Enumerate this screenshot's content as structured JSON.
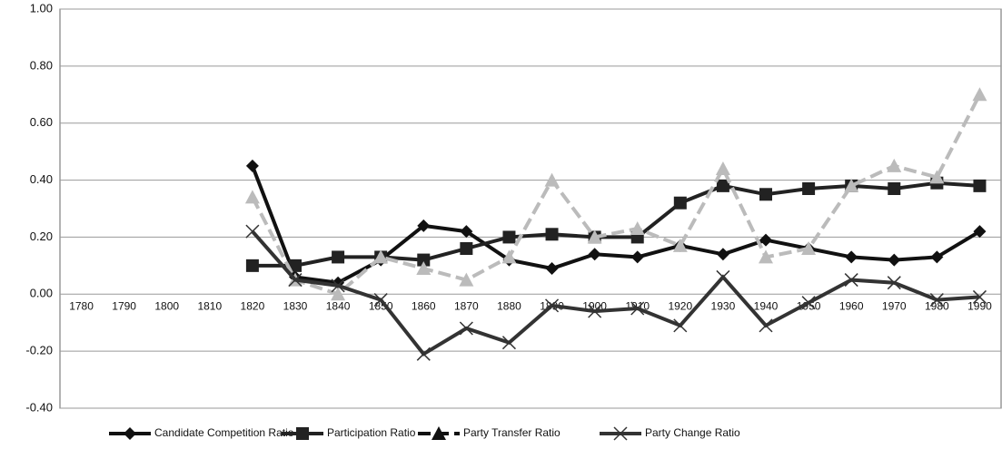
{
  "chart_data": {
    "type": "line",
    "categories": [
      "1780",
      "1790",
      "1800",
      "1810",
      "1820",
      "1830",
      "1840",
      "1850",
      "1860",
      "1870",
      "1880",
      "1890",
      "1900",
      "1910",
      "1920",
      "1930",
      "1940",
      "1950",
      "1960",
      "1970",
      "1980",
      "1990"
    ],
    "series": [
      {
        "name": "Candidate Competition Ratio",
        "color": "#111111",
        "marker": "diamond",
        "dash": false,
        "values": [
          null,
          null,
          null,
          null,
          0.45,
          0.06,
          0.04,
          0.12,
          0.24,
          0.22,
          0.12,
          0.09,
          0.14,
          0.13,
          0.17,
          0.14,
          0.19,
          0.16,
          0.13,
          0.12,
          0.13,
          0.22
        ]
      },
      {
        "name": "Participation Ratio",
        "color": "#222222",
        "marker": "square",
        "dash": false,
        "values": [
          null,
          null,
          null,
          null,
          0.1,
          0.1,
          0.13,
          0.13,
          0.12,
          0.16,
          0.2,
          0.21,
          0.2,
          0.2,
          0.32,
          0.38,
          0.35,
          0.37,
          0.38,
          0.37,
          0.39,
          0.38
        ]
      },
      {
        "name": "Party Transfer Ratio",
        "color": "#bbbbbb",
        "marker": "triangle",
        "dash": true,
        "values": [
          null,
          null,
          null,
          null,
          0.34,
          0.05,
          0.0,
          0.13,
          0.09,
          0.05,
          0.13,
          0.4,
          0.2,
          0.23,
          0.17,
          0.44,
          0.13,
          0.16,
          0.38,
          0.45,
          0.41,
          0.7
        ]
      },
      {
        "name": "Party Change Ratio",
        "color": "#333333",
        "marker": "x",
        "dash": false,
        "values": [
          null,
          null,
          null,
          null,
          0.22,
          0.05,
          0.03,
          -0.02,
          -0.21,
          -0.12,
          -0.17,
          -0.04,
          -0.06,
          -0.05,
          -0.11,
          0.06,
          -0.11,
          -0.03,
          0.05,
          0.04,
          -0.02,
          -0.01
        ]
      }
    ],
    "ylim": [
      -0.4,
      1.0
    ],
    "yticks": [
      {
        "value": -0.4,
        "label": "-0.40"
      },
      {
        "value": -0.2,
        "label": "-0.20"
      },
      {
        "value": 0,
        "label": "0.00"
      },
      {
        "value": 0.2,
        "label": "0.20"
      },
      {
        "value": 0.4,
        "label": "0.40"
      },
      {
        "value": 0.6,
        "label": "0.60"
      },
      {
        "value": 0.8,
        "label": "0.80"
      },
      {
        "value": 1.0,
        "label": "1.00"
      }
    ],
    "grid": true,
    "legend": "bottom"
  }
}
